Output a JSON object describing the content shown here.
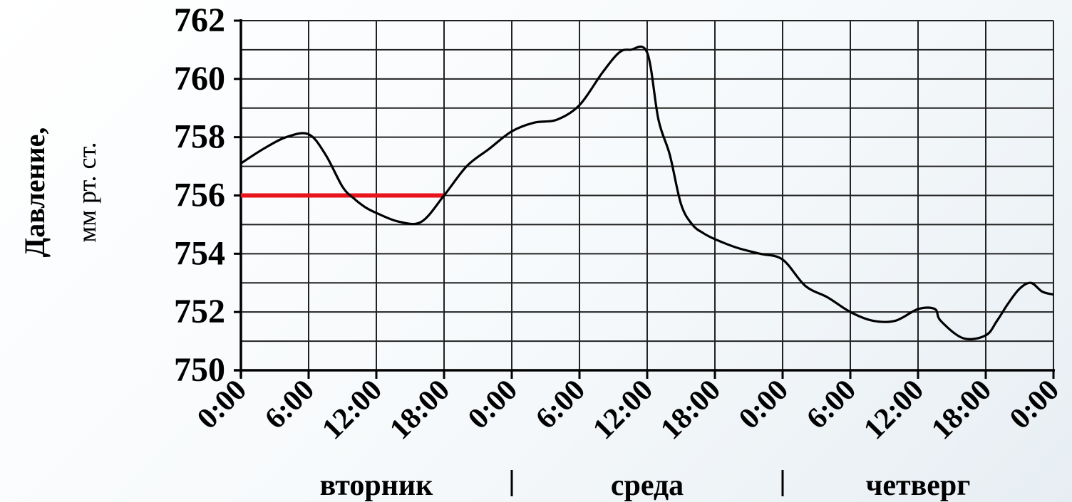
{
  "chart_data": {
    "type": "line",
    "title": "",
    "ylabel": [
      "Давление,",
      "мм рт. ст."
    ],
    "xlabel": "",
    "ylim": [
      750,
      762
    ],
    "yticks": [
      750,
      752,
      754,
      756,
      758,
      760,
      762
    ],
    "xlim": [
      0,
      72
    ],
    "xtick_labels": [
      "0:00",
      "6:00",
      "12:00",
      "18:00",
      "0:00",
      "6:00",
      "12:00",
      "18:00",
      "0:00",
      "6:00",
      "12:00",
      "18:00",
      "0:00"
    ],
    "day_labels": [
      "вторник",
      "среда",
      "четверг"
    ],
    "grid": true,
    "series": [
      {
        "color": "#000000",
        "x": [
          0,
          2,
          4,
          6,
          7.5,
          9,
          10,
          11,
          12,
          14,
          16,
          18,
          20,
          22,
          24,
          26,
          28,
          30,
          32,
          33.5,
          34.5,
          36,
          37,
          38,
          39,
          40,
          41,
          42,
          44,
          46,
          48,
          50,
          52,
          54,
          56,
          58,
          60,
          61.5,
          62,
          64,
          66,
          67,
          68,
          69,
          70,
          71,
          72
        ],
        "y": [
          757.1,
          757.6,
          758.0,
          758.1,
          757.4,
          756.3,
          755.9,
          755.6,
          755.4,
          755.1,
          755.1,
          756.0,
          757.0,
          757.6,
          758.2,
          758.5,
          758.6,
          759.1,
          760.2,
          760.9,
          761.0,
          760.9,
          758.6,
          757.4,
          755.7,
          755.0,
          754.7,
          754.5,
          754.2,
          754.0,
          753.8,
          752.9,
          752.5,
          752.0,
          751.7,
          751.7,
          752.1,
          752.1,
          751.7,
          751.1,
          751.2,
          751.7,
          752.3,
          752.8,
          753.0,
          752.7,
          752.6
        ]
      }
    ],
    "reference_line": {
      "y": 756,
      "x_from": 0,
      "x_to": 18,
      "color": "#e8131b"
    }
  }
}
